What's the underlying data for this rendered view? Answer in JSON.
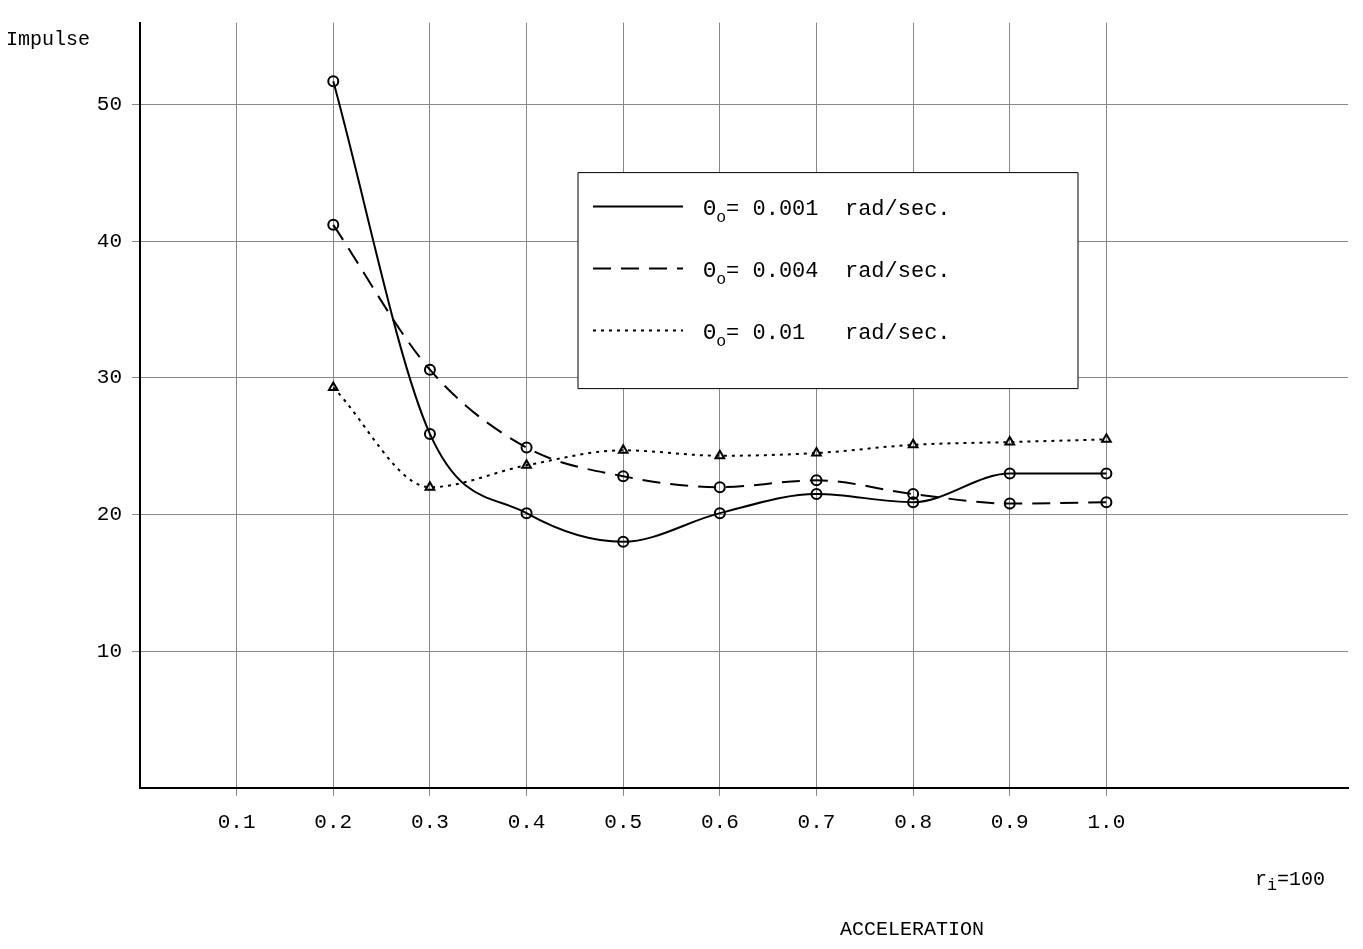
{
  "chart_data": {
    "type": "line",
    "xlabel": "ACCELERATION",
    "ylabel": "Impulse",
    "annotations": [
      "r$_{i}$=100"
    ],
    "x": [
      0.2,
      0.3,
      0.4,
      0.5,
      0.6,
      0.7,
      0.8,
      0.9,
      1.0
    ],
    "series": [
      {
        "name": "Θ$_{o}$= 0.001  rad/sec.",
        "color": "#000000",
        "line_style": "solid",
        "marker": "circle",
        "values": [
          51.7,
          25.9,
          20.1,
          18.0,
          20.1,
          21.5,
          20.9,
          23.0,
          23.0
        ]
      },
      {
        "name": "Θ$_{o}$= 0.004  rad/sec.",
        "color": "#000000",
        "line_style": "dashed",
        "marker": "circle",
        "values": [
          41.2,
          30.6,
          24.9,
          22.8,
          22.0,
          22.5,
          21.5,
          20.8,
          20.9
        ]
      },
      {
        "name": "Θ$_{o}$= 0.01   rad/sec.",
        "color": "#000000",
        "line_style": "dotted",
        "marker": "triangle",
        "values": [
          29.3,
          22.0,
          23.6,
          24.7,
          24.3,
          24.5,
          25.1,
          25.3,
          25.5
        ]
      }
    ],
    "xlim": [
      0,
      1.25
    ],
    "xticks": [
      0.1,
      0.2,
      0.3,
      0.4,
      0.5,
      0.6,
      0.7,
      0.8,
      0.9,
      {
        "value": 1.0,
        "label": "1.0"
      }
    ],
    "ylim": [
      0,
      56
    ],
    "yticks": [
      10,
      20,
      30,
      40,
      50
    ],
    "grid": true,
    "legend": "top right"
  }
}
